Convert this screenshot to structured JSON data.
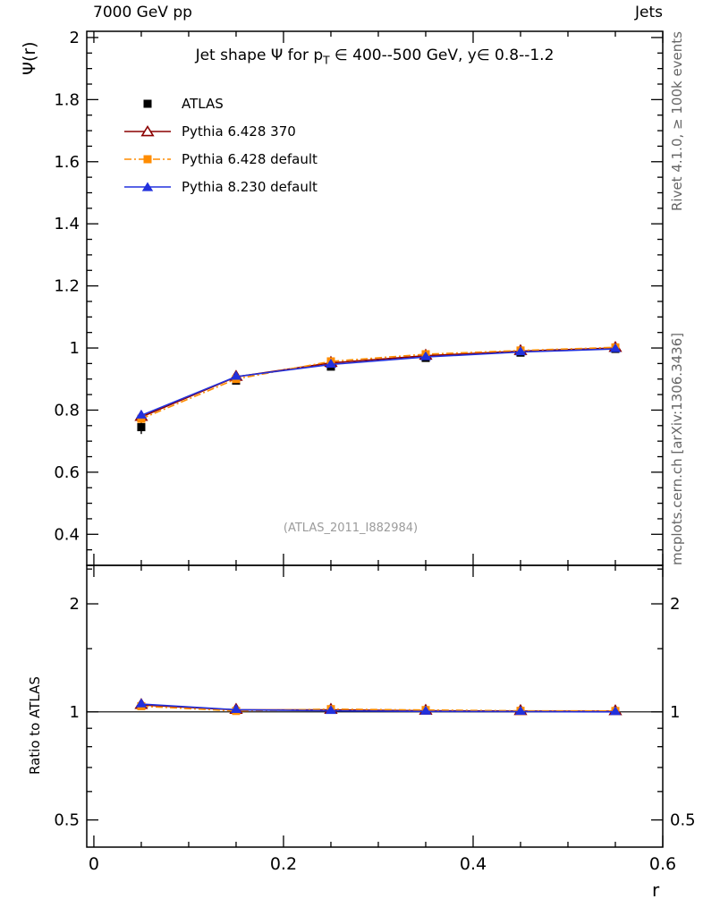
{
  "header": {
    "left": "7000 GeV pp",
    "right": "Jets"
  },
  "title": {
    "part1": "Jet shape Ψ for p",
    "sub": "T",
    "part2": " ∈ 400--500 GeV, y∈ 0.8--1.2"
  },
  "watermark": "(ATLAS_2011_I882984)",
  "captions": {
    "rivet": "Rivet 4.1.0, ≥ 100k events",
    "mcplots": "mcplots.cern.ch [arXiv:1306.3436]"
  },
  "axes": {
    "xlabel": "r",
    "main_ylabel": "Ψ(r)",
    "ratio_ylabel": "Ratio to ATLAS"
  },
  "legend": {
    "entries": [
      {
        "label": "ATLAS",
        "color": "#000000",
        "marker": "square-filled",
        "line": "none"
      },
      {
        "label": "Pythia 6.428 370",
        "color": "#8b0000",
        "marker": "triangle-open",
        "line": "solid"
      },
      {
        "label": "Pythia 6.428 default",
        "color": "#ff8c00",
        "marker": "square-filled",
        "line": "dash-dot"
      },
      {
        "label": "Pythia 8.230 default",
        "color": "#2231dd",
        "marker": "triangle-filled",
        "line": "solid"
      }
    ]
  },
  "chart_data": {
    "type": "line",
    "title": "Jet shape Ψ(r) for pT ∈ 400--500 GeV, y ∈ 0.8--1.2",
    "xlabel": "r",
    "x": [
      0.05,
      0.15,
      0.25,
      0.35,
      0.45,
      0.55
    ],
    "xlim": [
      -0.0075,
      0.6
    ],
    "xticks": {
      "values": [
        0,
        0.2,
        0.4,
        0.6
      ],
      "labels": [
        "0",
        "0.2",
        "0.4",
        "0.6"
      ],
      "minor_step": 0.05
    },
    "main_panel": {
      "ylabel": "Ψ(r)",
      "scale": "linear",
      "ylim": [
        0.3,
        2.02
      ],
      "yticks": {
        "values": [
          0.4,
          0.6,
          0.8,
          1,
          1.2,
          1.4,
          1.6,
          1.8,
          2
        ],
        "labels": [
          "0.4",
          "0.6",
          "0.8",
          "1",
          "1.2",
          "1.4",
          "1.6",
          "1.8",
          "2"
        ],
        "minor_step": 0.05
      },
      "series": [
        {
          "name": "ATLAS",
          "kind": "data-points",
          "color": "#000000",
          "marker": "square-filled",
          "line": "none",
          "values": [
            0.745,
            0.895,
            0.94,
            0.968,
            0.985,
            0.997
          ],
          "errors": [
            0.022,
            0.012,
            0.01,
            0.008,
            0.007,
            0.012
          ]
        },
        {
          "name": "Pythia 6.428 370",
          "kind": "mc-prediction",
          "color": "#8b0000",
          "marker": "triangle-open",
          "line": "solid",
          "values": [
            0.778,
            0.907,
            0.952,
            0.975,
            0.99,
            1.0
          ],
          "errors": [
            0.008,
            0.005,
            0.004,
            0.004,
            0.004,
            0.005
          ]
        },
        {
          "name": "Pythia 6.428 default",
          "kind": "mc-prediction",
          "color": "#ff8c00",
          "marker": "square-filled",
          "line": "dash-dot",
          "values": [
            0.772,
            0.9,
            0.957,
            0.98,
            0.992,
            1.002
          ],
          "errors": [
            0.008,
            0.005,
            0.004,
            0.004,
            0.004,
            0.005
          ]
        },
        {
          "name": "Pythia 8.230 default",
          "kind": "mc-prediction",
          "color": "#2231dd",
          "marker": "triangle-filled",
          "line": "solid",
          "values": [
            0.783,
            0.908,
            0.947,
            0.971,
            0.987,
            0.997
          ],
          "errors": [
            0.008,
            0.005,
            0.004,
            0.004,
            0.004,
            0.005
          ]
        }
      ]
    },
    "ratio_panel": {
      "ylabel": "Ratio to ATLAS",
      "scale": "log",
      "ylim": [
        0.42,
        2.56
      ],
      "reference_line": 1,
      "yticks": {
        "values": [
          0.5,
          1,
          2
        ],
        "labels": [
          "0.5",
          "1",
          "2"
        ],
        "minors": [
          0.6,
          0.7,
          0.8,
          0.9,
          1.5,
          2.5
        ],
        "labels_both_sides": true
      },
      "series": [
        {
          "name": "Pythia 6.428 370",
          "color": "#8b0000",
          "marker": "triangle-open",
          "line": "solid",
          "values": [
            1.045,
            1.013,
            1.013,
            1.007,
            1.005,
            1.004
          ],
          "errors": [
            0.012,
            0.007,
            0.006,
            0.005,
            0.005,
            0.008
          ]
        },
        {
          "name": "Pythia 6.428 default",
          "color": "#ff8c00",
          "marker": "square-filled",
          "line": "dash-dot",
          "values": [
            1.037,
            1.006,
            1.018,
            1.012,
            1.007,
            1.006
          ],
          "errors": [
            0.012,
            0.007,
            0.006,
            0.005,
            0.005,
            0.008
          ]
        },
        {
          "name": "Pythia 8.230 default",
          "color": "#2231dd",
          "marker": "triangle-filled",
          "line": "solid",
          "values": [
            1.051,
            1.014,
            1.007,
            1.003,
            1.002,
            1.0
          ],
          "errors": [
            0.012,
            0.007,
            0.006,
            0.005,
            0.005,
            0.008
          ]
        }
      ]
    }
  }
}
